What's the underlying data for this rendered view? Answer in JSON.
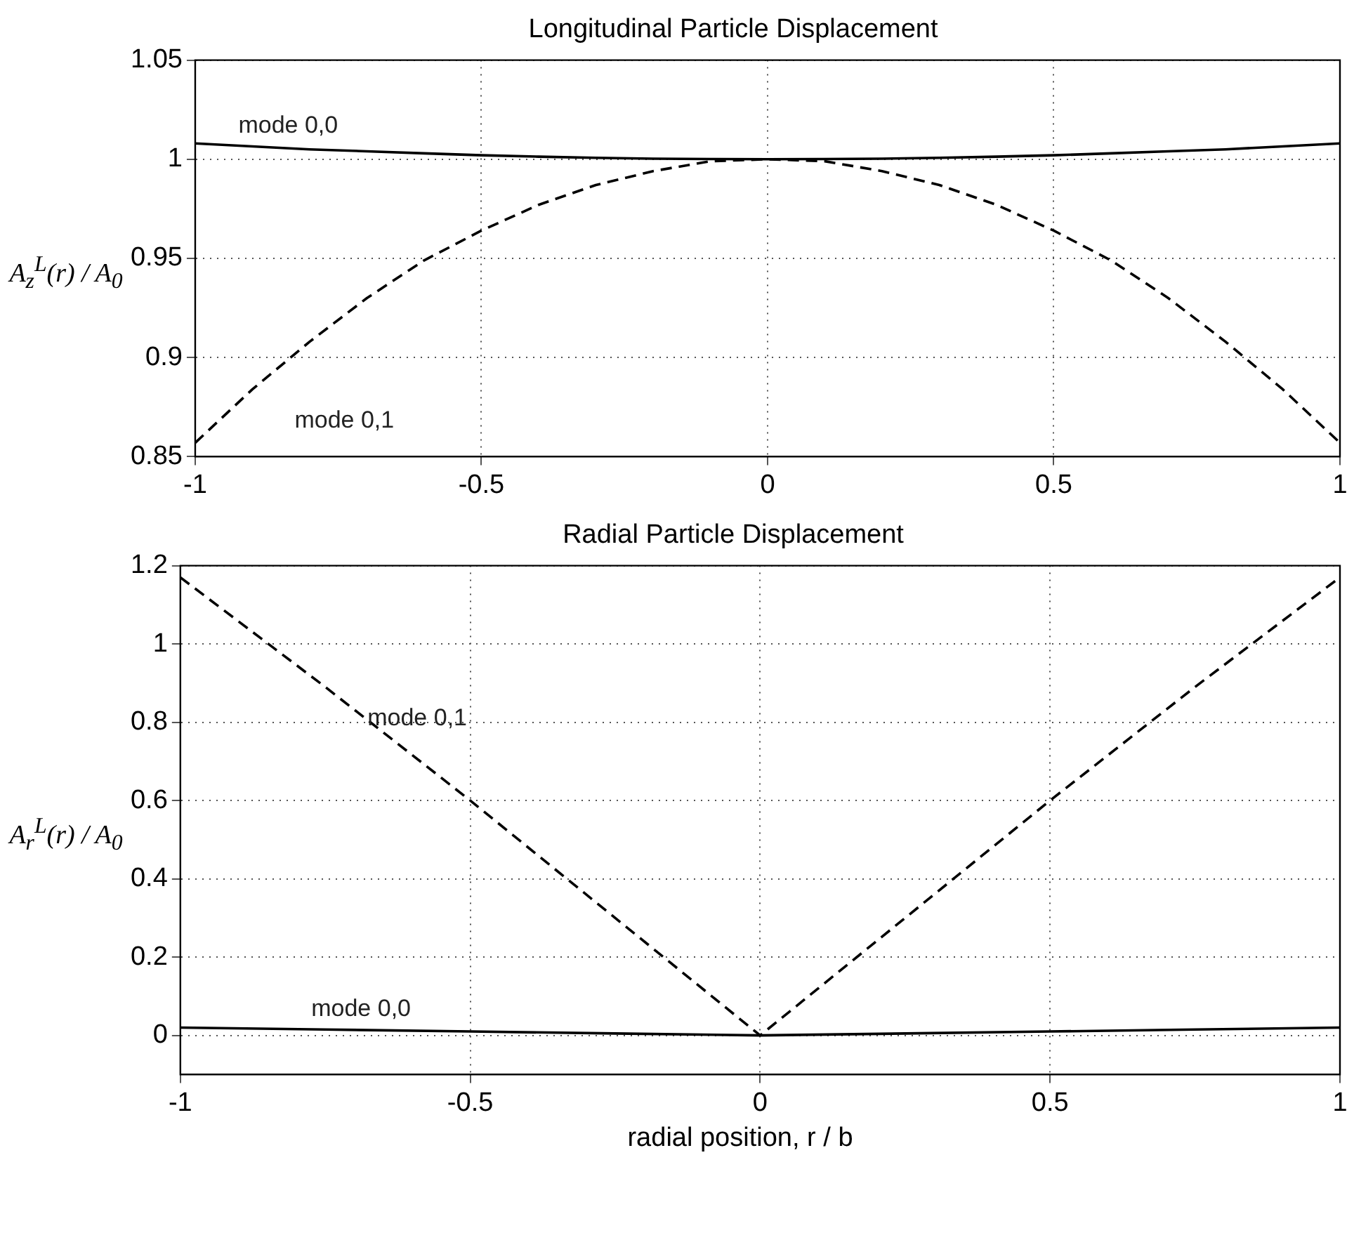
{
  "chart_data": [
    {
      "type": "line",
      "title": "Longitudinal Particle Displacement",
      "ylabel": "A$_{z}$$^{L}$(r) / A$_{0}$",
      "x": [
        -1,
        -0.9,
        -0.8,
        -0.7,
        -0.6,
        -0.5,
        -0.4,
        -0.3,
        -0.2,
        -0.1,
        0,
        0.1,
        0.2,
        0.3,
        0.4,
        0.5,
        0.6,
        0.7,
        0.8,
        0.9,
        1
      ],
      "series": [
        {
          "name": "mode 0,0",
          "color": "#000000",
          "line_style": "solid",
          "values": [
            1.008,
            1.0065,
            1.005,
            1.004,
            1.003,
            1.002,
            1.0013,
            1.0007,
            1.0003,
            1.0001,
            1,
            1.0001,
            1.0003,
            1.0007,
            1.0013,
            1.002,
            1.003,
            1.004,
            1.005,
            1.0065,
            1.008
          ]
        },
        {
          "name": "mode 0,1",
          "color": "#000000",
          "line_style": "dashed",
          "values": [
            0.857,
            0.884,
            0.908,
            0.93,
            0.949,
            0.964,
            0.977,
            0.987,
            0.994,
            0.999,
            1,
            0.999,
            0.994,
            0.987,
            0.977,
            0.964,
            0.949,
            0.93,
            0.908,
            0.884,
            0.857
          ]
        }
      ],
      "xlim": [
        -1,
        1
      ],
      "xticks": [
        -1,
        -0.5,
        0,
        0.5,
        1
      ],
      "ylim": [
        0.85,
        1.05
      ],
      "yticks": [
        0.85,
        0.9,
        0.95,
        1,
        1.05
      ],
      "grid": true,
      "legend": false,
      "marker": "none"
    },
    {
      "type": "line",
      "title": "Radial Particle Displacement",
      "xlabel": "radial position, r / b",
      "ylabel": "A$_{r}$$^{L}$(r) / A$_{0}$",
      "x": [
        -1,
        -0.75,
        -0.5,
        -0.25,
        0,
        0.25,
        0.5,
        0.75,
        1
      ],
      "series": [
        {
          "name": "mode 0,0",
          "color": "#000000",
          "line_style": "solid",
          "values": [
            0.02,
            0.015,
            0.01,
            0.005,
            0,
            0.005,
            0.01,
            0.015,
            0.02
          ]
        },
        {
          "name": "mode 0,1",
          "color": "#000000",
          "line_style": "dashed",
          "values": [
            1.17,
            0.89,
            0.6,
            0.3,
            0,
            0.3,
            0.6,
            0.89,
            1.17
          ]
        }
      ],
      "xlim": [
        -1,
        1
      ],
      "xticks": [
        -1,
        -0.5,
        0,
        0.5,
        1
      ],
      "ylim": [
        -0.1,
        1.2
      ],
      "yticks": [
        0,
        0.2,
        0.4,
        0.6,
        0.8,
        1,
        1.2
      ],
      "grid": true,
      "legend": false,
      "marker": "none"
    }
  ]
}
